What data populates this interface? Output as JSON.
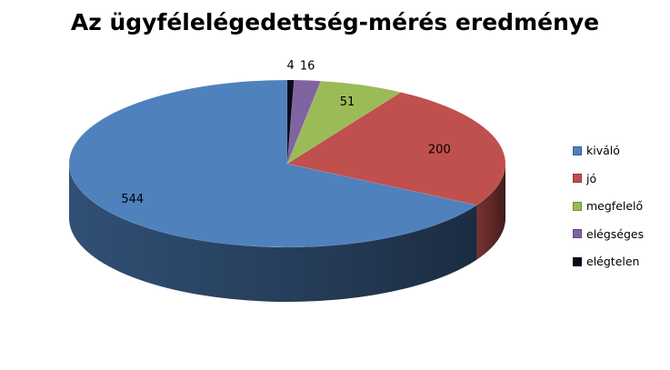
{
  "chart_data": {
    "type": "pie",
    "title": "Az ügyfélelégedettség-mérés eredménye",
    "categories": [
      "kiváló",
      "jó",
      "megfelelő",
      "elégséges",
      "elégtelen"
    ],
    "values": [
      544,
      200,
      51,
      16,
      4
    ],
    "colors": [
      "#4f81bd",
      "#c0504d",
      "#9bbb59",
      "#8064a2",
      "#0a0a1a"
    ],
    "legend_position": "right",
    "style": "3d"
  }
}
